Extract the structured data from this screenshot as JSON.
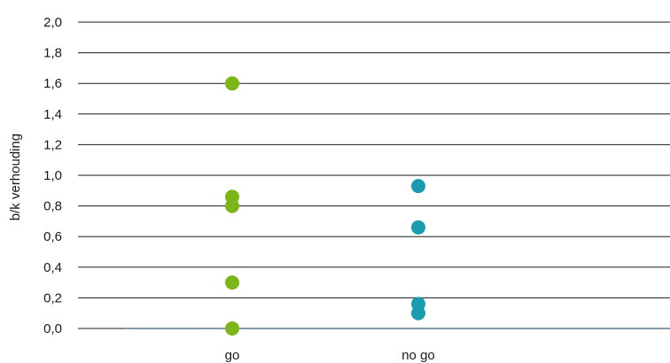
{
  "chart_data": {
    "type": "scatter",
    "title": "",
    "xlabel": "",
    "ylabel": "b/k verhouding",
    "categories": [
      "go",
      "no go"
    ],
    "ylim": [
      0,
      2.0
    ],
    "yticks": [
      "0,0",
      "0,2",
      "0,4",
      "0,6",
      "0,8",
      "1,0",
      "1,2",
      "1,4",
      "1,6",
      "1,8",
      "2,0"
    ],
    "grid": true,
    "legend": "none",
    "series": [
      {
        "category": "go",
        "color": "#7cb518",
        "values": [
          1.6,
          0.86,
          0.8,
          0.3,
          0.0
        ]
      },
      {
        "category": "no go",
        "color": "#1a9bb0",
        "values": [
          0.93,
          0.66,
          0.16,
          0.1
        ]
      }
    ]
  }
}
